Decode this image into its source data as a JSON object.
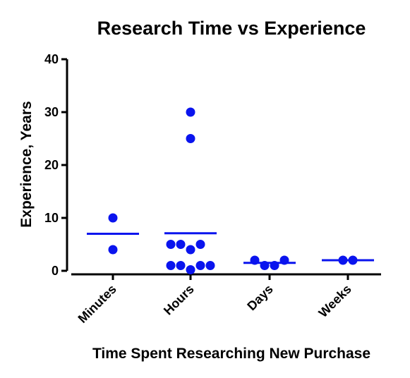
{
  "chart_data": {
    "type": "scatter",
    "title": "Research Time vs  Experience",
    "xlabel": "Time Spent Researching New Purchase",
    "ylabel": "Experience, Years",
    "ylim": [
      0,
      40
    ],
    "yticks": [
      0,
      10,
      20,
      30,
      40
    ],
    "categories": [
      "Minutes",
      "Hours",
      "Days",
      "Weeks"
    ],
    "grid": false,
    "legend": "none",
    "colors": {
      "points": "#0a14ee",
      "mean_line": "#0a14ee",
      "axis": "#000000"
    },
    "groups": [
      {
        "category": "Minutes",
        "mean": 7,
        "points": [
          {
            "y": 10,
            "offset": 0
          },
          {
            "y": 4,
            "offset": 0
          }
        ]
      },
      {
        "category": "Hours",
        "mean": 7.1,
        "points": [
          {
            "y": 30,
            "offset": 0
          },
          {
            "y": 25,
            "offset": 0
          },
          {
            "y": 5,
            "offset": -2
          },
          {
            "y": 5,
            "offset": -1
          },
          {
            "y": 4,
            "offset": 0
          },
          {
            "y": 5,
            "offset": 1
          },
          {
            "y": 1,
            "offset": -2
          },
          {
            "y": 1,
            "offset": -1
          },
          {
            "y": 0.2,
            "offset": 0
          },
          {
            "y": 1,
            "offset": 1
          },
          {
            "y": 1,
            "offset": 2
          }
        ]
      },
      {
        "category": "Days",
        "mean": 1.5,
        "points": [
          {
            "y": 2,
            "offset": -1.5
          },
          {
            "y": 1,
            "offset": -0.5
          },
          {
            "y": 1,
            "offset": 0.5
          },
          {
            "y": 2,
            "offset": 1.5
          }
        ]
      },
      {
        "category": "Weeks",
        "mean": 2,
        "points": [
          {
            "y": 2,
            "offset": -0.5
          },
          {
            "y": 2,
            "offset": 0.5
          }
        ]
      }
    ]
  }
}
